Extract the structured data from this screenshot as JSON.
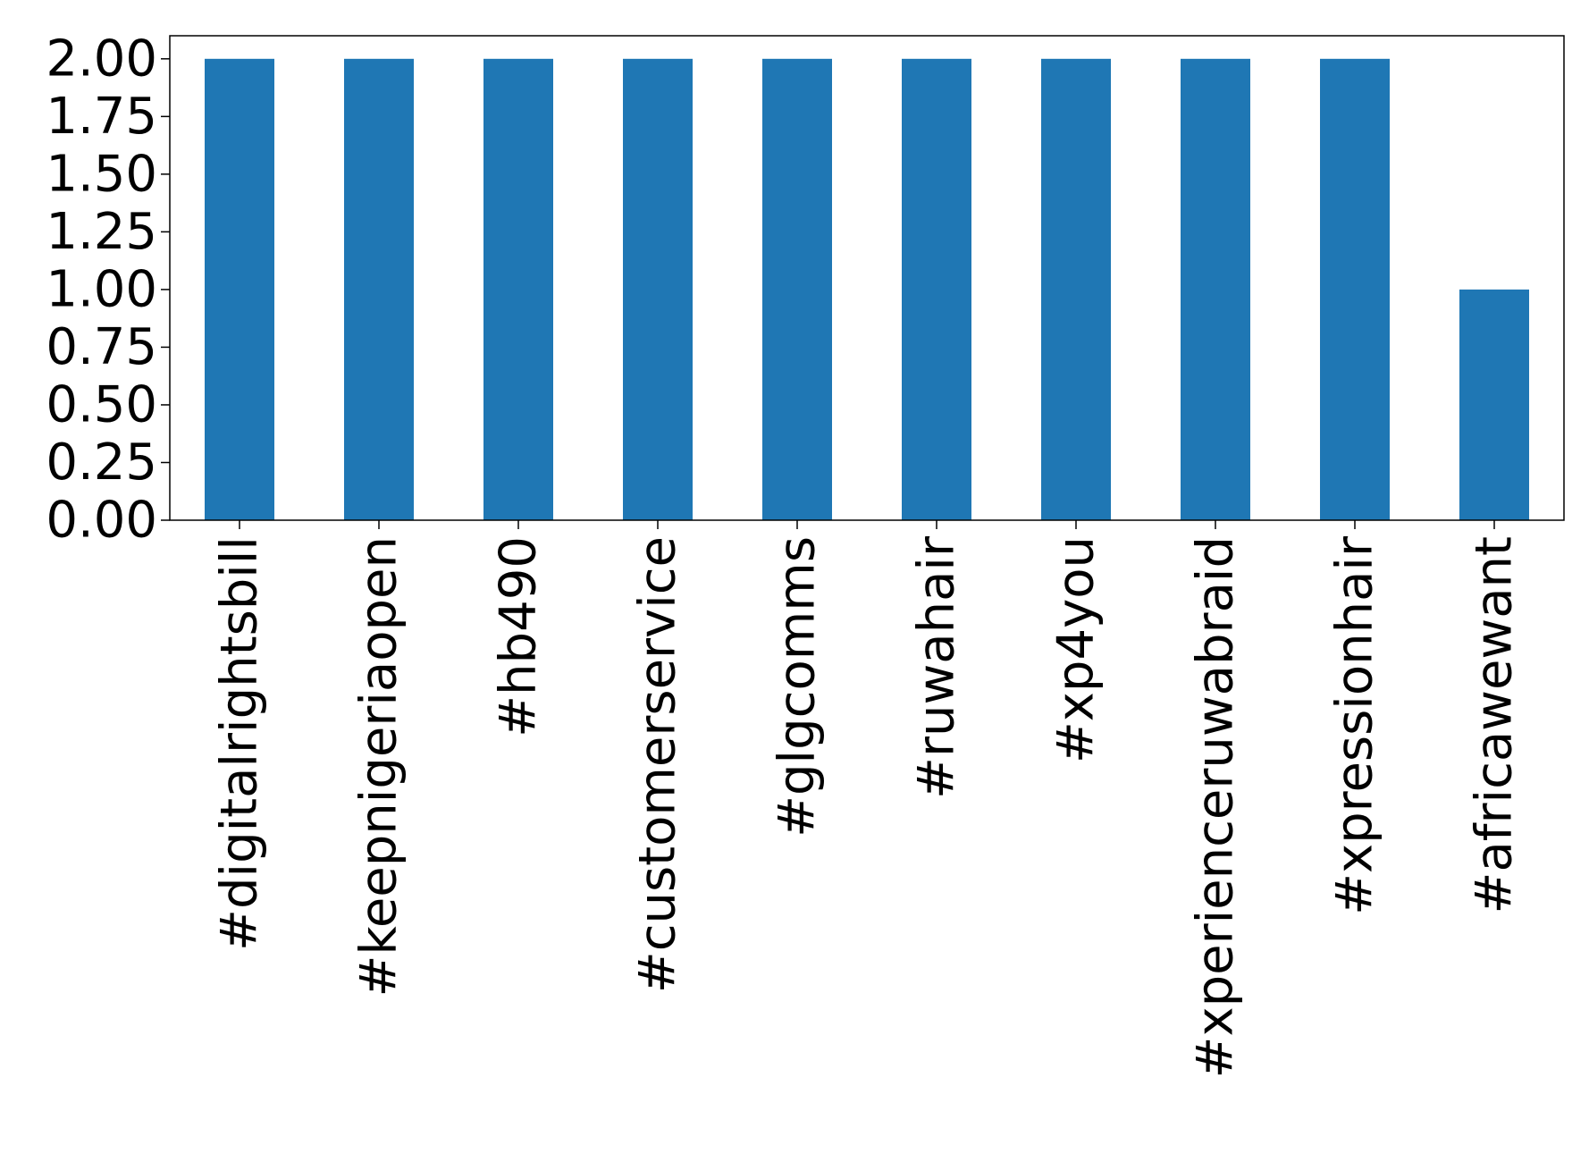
{
  "chart_data": {
    "type": "bar",
    "title": "",
    "xlabel": "",
    "ylabel": "",
    "categories": [
      "#digitalrightsbill",
      "#keepnigeriaopen",
      "#hb490",
      "#customerservice",
      "#glgcomms",
      "#ruwahair",
      "#xp4you",
      "#xperienceruwabraid",
      "#xpressionhair",
      "#africawewant"
    ],
    "values": [
      2,
      2,
      2,
      2,
      2,
      2,
      2,
      2,
      2,
      1
    ],
    "ylim": [
      0,
      2.1
    ],
    "yticks": [
      "0.00",
      "0.25",
      "0.50",
      "0.75",
      "1.00",
      "1.25",
      "1.50",
      "1.75",
      "2.00"
    ],
    "bar_color": "#1f77b4",
    "grid": false,
    "legend": "none",
    "x_tick_rotation": "vertical"
  }
}
